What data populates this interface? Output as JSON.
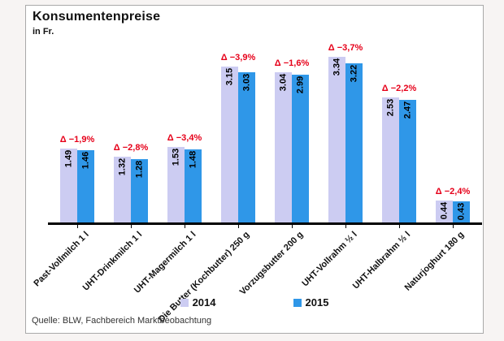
{
  "page": {
    "background": "#f7f4f3"
  },
  "chart": {
    "title": "Konsumentenpreise",
    "subtitle": "in Fr.",
    "source": "Quelle: BLW, Fachbereich Marktbeobachtung"
  },
  "chart_data": {
    "type": "bar",
    "title": "Konsumentenpreise",
    "subtitle": "in Fr.",
    "categories": [
      "Past-Vollmilch 1 l",
      "UHT-Drinkmilch 1 l",
      "UHT-Magermilch 1 l",
      "Die Butter (Kochbutter) 250 g",
      "Vorzugsbutter 200 g",
      "UHT-Vollrahm ½ l",
      "UHT-Halbrahm ½ l",
      "Naturjoghurt 180 g"
    ],
    "series": [
      {
        "name": "2014",
        "color": "#ccccf2",
        "values": [
          1.49,
          1.32,
          1.53,
          3.15,
          3.04,
          3.34,
          2.53,
          0.44
        ]
      },
      {
        "name": "2015",
        "color": "#2f97e8",
        "values": [
          1.46,
          1.28,
          1.48,
          3.03,
          2.99,
          3.22,
          2.47,
          0.43
        ]
      }
    ],
    "delta_labels": [
      "Δ −1,9%",
      "Δ −2,8%",
      "Δ −3,4%",
      "Δ −3,9%",
      "Δ −1,6%",
      "Δ −3,7%",
      "Δ −2,2%",
      "Δ −2,4%"
    ],
    "delta_color": "#e60019",
    "value_label_format": "0.00",
    "ylim": [
      0,
      3.5
    ],
    "grid": false,
    "legend_position": "bottom"
  }
}
